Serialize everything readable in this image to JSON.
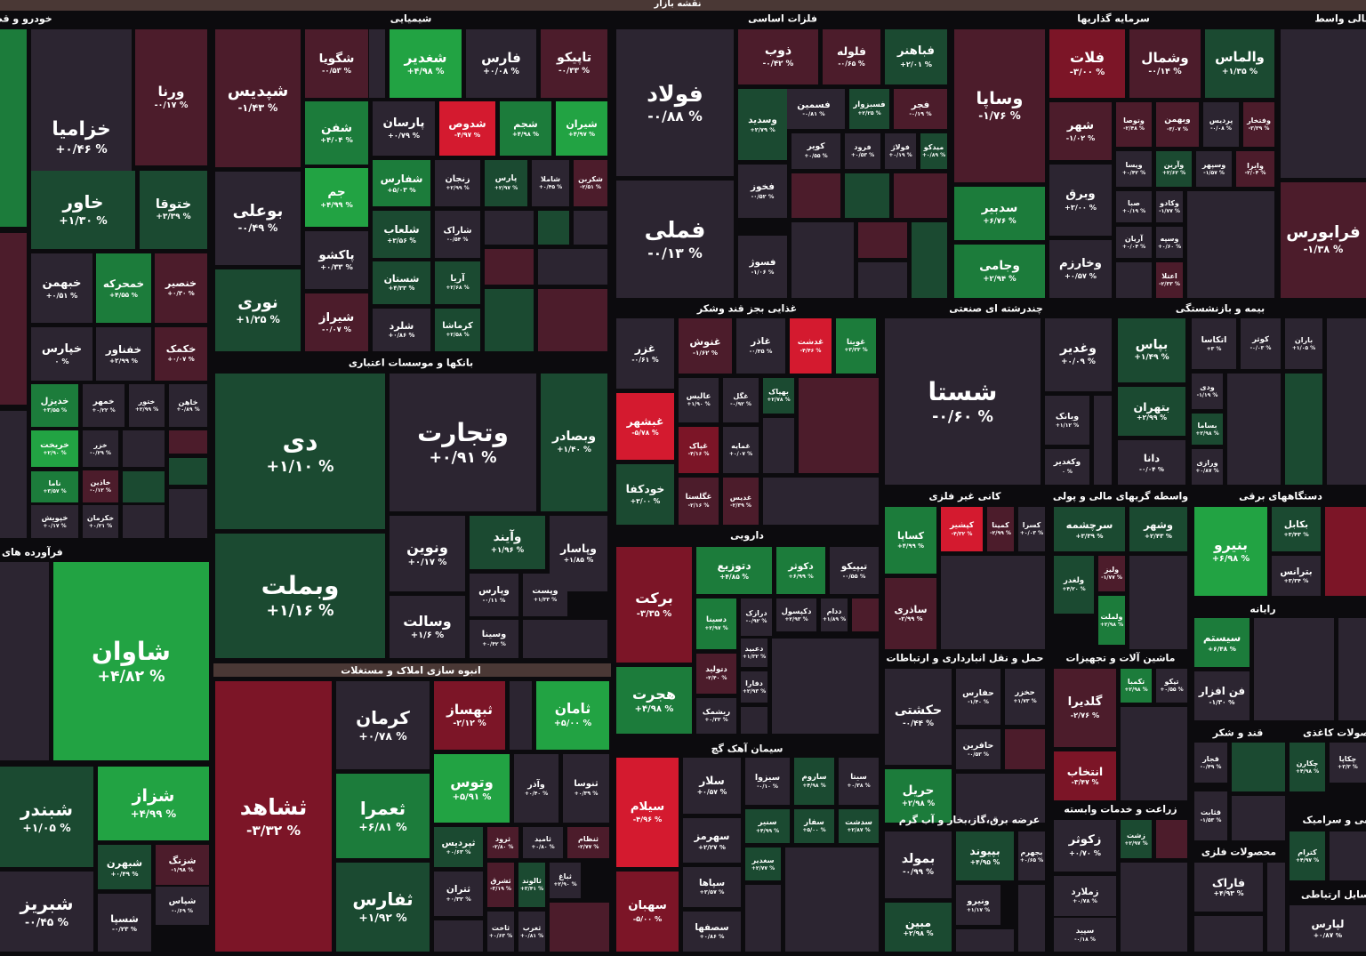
{
  "header": {
    "title": "نقشه بازار"
  },
  "sectors": [
    {
      "name": "خودرو و قطعات",
      "tiles": [
        {
          "symbol": "خزامیا",
          "change": "+۰/۴۶ %"
        },
        {
          "symbol": "ورنا",
          "change": "-۰/۱۷ %"
        },
        {
          "symbol": "خاور",
          "change": "+۱/۳۰ %"
        },
        {
          "symbol": "ختوقا",
          "change": "+۳/۳۹ %"
        },
        {
          "symbol": "خبهمن",
          "change": "+۰/۵۱ %"
        },
        {
          "symbol": "خمحرکه",
          "change": "+۴/۵۵ %"
        },
        {
          "symbol": "خنصیر",
          "change": "+۰/۳۰ %"
        },
        {
          "symbol": "خپارس",
          "change": "۰ %"
        },
        {
          "symbol": "خفناور",
          "change": "+۲/۹۹ %"
        },
        {
          "symbol": "خکمک",
          "change": "+۰/۰۷ %"
        },
        {
          "symbol": "خدیزل",
          "change": "+۳/۵۵ %"
        },
        {
          "symbol": "خمهر",
          "change": "+۰/۲۲ %"
        },
        {
          "symbol": "ختور",
          "change": "+۲/۹۹ %"
        },
        {
          "symbol": "خاهن",
          "change": "+۰/۸۹ %"
        },
        {
          "symbol": "خریخت",
          "change": "+۲/۹۰ %"
        },
        {
          "symbol": "خزر",
          "change": "-۰/۲۹ %"
        },
        {
          "symbol": "خاذین",
          "change": "-۰/۱۲ %"
        },
        {
          "symbol": "ناما",
          "change": "+۳/۵۷ %"
        },
        {
          "symbol": "خپویش",
          "change": "+۰/۱۷ %"
        },
        {
          "symbol": "خکرمان",
          "change": "+۰/۲۱ %"
        }
      ]
    },
    {
      "name": "فرآورده های غذایی",
      "tiles": [
        {
          "symbol": "شاوان",
          "change": "+۴/۸۲ %"
        },
        {
          "symbol": "شبندر",
          "change": "+۱/۰۵ %"
        },
        {
          "symbol": "شزاز",
          "change": "+۴/۹۹ %"
        },
        {
          "symbol": "شبهرن",
          "change": "+۰/۴۹ %"
        },
        {
          "symbol": "شزنگ",
          "change": "-۱/۹۸ %"
        },
        {
          "symbol": "شپاس",
          "change": "-۰/۶۹ %"
        },
        {
          "symbol": "شبریز",
          "change": "-۰/۴۵ %"
        },
        {
          "symbol": "شسپا",
          "change": "-۰/۲۳ %"
        }
      ]
    },
    {
      "name": "شیمیایی",
      "tiles": [
        {
          "symbol": "شپدیس",
          "change": "-۱/۴۳ %"
        },
        {
          "symbol": "بوعلی",
          "change": "-۰/۴۹ %"
        },
        {
          "symbol": "نوری",
          "change": "+۱/۲۵ %"
        },
        {
          "symbol": "شگویا",
          "change": "-۰/۵۳ %"
        },
        {
          "symbol": "شغدیر",
          "change": "+۴/۹۸ %"
        },
        {
          "symbol": "فارس",
          "change": "+۰/۰۸ %"
        },
        {
          "symbol": "تاپیکو",
          "change": "-۰/۳۳ %"
        },
        {
          "symbol": "شفن",
          "change": "+۴/۰۴ %"
        },
        {
          "symbol": "پارسان",
          "change": "+۰/۷۹ %"
        },
        {
          "symbol": "شدوص",
          "change": "-۴/۹۷ %"
        },
        {
          "symbol": "شجم",
          "change": "+۴/۹۸ %"
        },
        {
          "symbol": "شیران",
          "change": "+۴/۹۷ %"
        },
        {
          "symbol": "جم",
          "change": "+۴/۹۹ %"
        },
        {
          "symbol": "شفارس",
          "change": "+۵/۰۳ %"
        },
        {
          "symbol": "زنجان",
          "change": "+۲/۹۹ %"
        },
        {
          "symbol": "پارس",
          "change": "+۲/۹۷ %"
        },
        {
          "symbol": "شاملا",
          "change": "+۰/۴۵ %"
        },
        {
          "symbol": "شکربن",
          "change": "-۲/۵۱ %"
        },
        {
          "symbol": "پاکشو",
          "change": "+۰/۳۳ %"
        },
        {
          "symbol": "شلعاب",
          "change": "+۳/۵۶ %"
        },
        {
          "symbol": "شاراک",
          "change": "-۰/۵۴ %"
        },
        {
          "symbol": "شستان",
          "change": "+۴/۳۳ %"
        },
        {
          "symbol": "آریا",
          "change": "+۲/۶۸ %"
        },
        {
          "symbol": "شیراز",
          "change": "-۰/۰۷ %"
        },
        {
          "symbol": "شلرد",
          "change": "+۰/۸۶ %"
        },
        {
          "symbol": "کرماشا",
          "change": "+۲/۵۸ %"
        }
      ]
    },
    {
      "name": "بانکها و موسسات اعتباری",
      "tiles": [
        {
          "symbol": "دی",
          "change": "+۱/۱۰ %"
        },
        {
          "symbol": "وتجارت",
          "change": "+۰/۹۱ %"
        },
        {
          "symbol": "وبصادر",
          "change": "+۱/۴۰ %"
        },
        {
          "symbol": "وبملت",
          "change": "+۱/۱۶ %"
        },
        {
          "symbol": "ونوین",
          "change": "+۰/۱۷ %"
        },
        {
          "symbol": "وآیند",
          "change": "+۱/۹۶ %"
        },
        {
          "symbol": "وپاسار",
          "change": "+۱/۸۵ %"
        },
        {
          "symbol": "وسالت",
          "change": "+۱/۶ %"
        },
        {
          "symbol": "وپارس",
          "change": "-۰/۱۱ %"
        },
        {
          "symbol": "وپست",
          "change": "+۱/۳۳ %"
        },
        {
          "symbol": "وسینا",
          "change": "+۰/۴۲ %"
        }
      ]
    },
    {
      "name": "انبوه سازی املاک و مستغلات",
      "tiles": [
        {
          "symbol": "ثشاهد",
          "change": "-۳/۳۲ %"
        },
        {
          "symbol": "کرمان",
          "change": "+۰/۷۸ %"
        },
        {
          "symbol": "ثبهساز",
          "change": "-۲/۱۲ %"
        },
        {
          "symbol": "ثامان",
          "change": "+۵/۰۰ %"
        },
        {
          "symbol": "ثعمرا",
          "change": "+۶/۸۱ %"
        },
        {
          "symbol": "ثفارس",
          "change": "+۱/۹۲ %"
        },
        {
          "symbol": "وتوس",
          "change": "+۵/۹۱ %"
        },
        {
          "symbol": "وآذر",
          "change": "+۰/۴۰ %"
        },
        {
          "symbol": "ثنوسا",
          "change": "+۰/۳۹ %"
        },
        {
          "symbol": "ثپردیس",
          "change": "+۰/۶۳ %"
        },
        {
          "symbol": "ثرود",
          "change": "-۲/۸۰ %"
        },
        {
          "symbol": "ثامید",
          "change": "+۰/۸۰ %"
        },
        {
          "symbol": "ثنظام",
          "change": "-۲/۷۷ %"
        },
        {
          "symbol": "ثتران",
          "change": "+۰/۳۲ %"
        },
        {
          "symbol": "ثشرق",
          "change": "-۳/۱۹ %"
        },
        {
          "symbol": "ثالوند",
          "change": "+۳/۴۱ %"
        },
        {
          "symbol": "ثباغ",
          "change": "+۲/۹۰ %"
        },
        {
          "symbol": "ثاخت",
          "change": "+۰/۶۳ %"
        },
        {
          "symbol": "ثغرب",
          "change": "+۰/۸۱ %"
        }
      ]
    },
    {
      "name": "فلزات اساسی",
      "tiles": [
        {
          "symbol": "فولاد",
          "change": "-۰/۸۸ %"
        },
        {
          "symbol": "فملی",
          "change": "-۰/۱۳ %"
        },
        {
          "symbol": "ذوب",
          "change": "-۰/۴۲ %"
        },
        {
          "symbol": "فلوله",
          "change": "-۰/۶۵ %"
        },
        {
          "symbol": "فباهنر",
          "change": "+۲/۰۱ %"
        },
        {
          "symbol": "فسمین",
          "change": "-۰/۸۱ %"
        },
        {
          "symbol": "فسبزوار",
          "change": "+۲/۲۵ %"
        },
        {
          "symbol": "فجر",
          "change": "-۰/۱۹ %"
        },
        {
          "symbol": "وسدید",
          "change": "+۲/۷۹ %"
        },
        {
          "symbol": "کویر",
          "change": "+۰/۵۵ %"
        },
        {
          "symbol": "فرود",
          "change": "+۰/۵۳ %"
        },
        {
          "symbol": "فولاژ",
          "change": "+۰/۱۹ %"
        },
        {
          "symbol": "میدکو",
          "change": "+۰/۸۹ %"
        },
        {
          "symbol": "فخوز",
          "change": "-۰/۵۲ %"
        },
        {
          "symbol": "فسوژ",
          "change": "-۱/۰۶ %"
        }
      ]
    },
    {
      "name": "سرمایه گذاریها",
      "tiles": [
        {
          "symbol": "وساپا",
          "change": "-۱/۷۶ %"
        },
        {
          "symbol": "فلات",
          "change": "-۳/۰۰ %"
        },
        {
          "symbol": "وشمال",
          "change": "-۰/۱۴ %"
        },
        {
          "symbol": "والماس",
          "change": "+۱/۳۵ %"
        },
        {
          "symbol": "شهر",
          "change": "-۱/۰۲ %"
        },
        {
          "symbol": "وتوصا",
          "change": "-۲/۴۸ %"
        },
        {
          "symbol": "وبهمن",
          "change": "-۳/۰۷ %"
        },
        {
          "symbol": "پردیس",
          "change": "-۰/۰۸ %"
        },
        {
          "symbol": "وفتخار",
          "change": "-۳/۳۹ %"
        },
        {
          "symbol": "سدبیر",
          "change": "+۶/۷۶ %"
        },
        {
          "symbol": "وبرق",
          "change": "+۳/۰۰ %"
        },
        {
          "symbol": "ویسا",
          "change": "+۰/۴۲ %"
        },
        {
          "symbol": "وآرین",
          "change": "+۲/۶۲ %"
        },
        {
          "symbol": "وسپهر",
          "change": "-۱/۵۷ %"
        },
        {
          "symbol": "وایرا",
          "change": "-۲/۰۴ %"
        },
        {
          "symbol": "وجامی",
          "change": "+۲/۹۴ %"
        },
        {
          "symbol": "وخارزم",
          "change": "+۰/۵۷ %"
        },
        {
          "symbol": "صبا",
          "change": "+۰/۱۹ %"
        },
        {
          "symbol": "وکادو",
          "change": "-۱/۷۷ %"
        },
        {
          "symbol": "آریان",
          "change": "+۰/۰۴ %"
        },
        {
          "symbol": "وسپه",
          "change": "+۰/۶۰ %"
        },
        {
          "symbol": "اعتلا",
          "change": "-۲/۳۳ %"
        }
      ]
    },
    {
      "name": "مالی واسط",
      "tiles": [
        {
          "symbol": "فرابورس",
          "change": "-۱/۳۸ %"
        }
      ]
    },
    {
      "name": "غذایی بجز قند وشکر",
      "tiles": [
        {
          "symbol": "غزر",
          "change": "-۰/۶۱ %"
        },
        {
          "symbol": "غنوش",
          "change": "-۱/۶۲ %"
        },
        {
          "symbol": "غاذر",
          "change": "-۰/۳۵ %"
        },
        {
          "symbol": "غدشت",
          "change": "-۴/۴۶ %"
        },
        {
          "symbol": "غویتا",
          "change": "+۳/۳۳ %"
        },
        {
          "symbol": "غبشهر",
          "change": "-۵/۷۸ %"
        },
        {
          "symbol": "خودکفا",
          "change": "+۳/۰۰ %"
        },
        {
          "symbol": "عالیس",
          "change": "+۱/۹۰ %"
        },
        {
          "symbol": "غگل",
          "change": "-۰/۹۲ %"
        },
        {
          "symbol": "بهپاک",
          "change": "+۲/۷۸ %"
        },
        {
          "symbol": "غپاک",
          "change": "-۴/۱۶ %"
        },
        {
          "symbol": "غمایه",
          "change": "+۰/۰۷ %"
        },
        {
          "symbol": "غگلستا",
          "change": "-۲/۱۶ %"
        },
        {
          "symbol": "غدیس",
          "change": "-۲/۳۹ %"
        }
      ]
    },
    {
      "name": "دارویی",
      "tiles": [
        {
          "symbol": "برکت",
          "change": "-۳/۳۵ %"
        },
        {
          "symbol": "هجرت",
          "change": "+۴/۹۸ %"
        },
        {
          "symbol": "دتوزیع",
          "change": "+۴/۸۵ %"
        },
        {
          "symbol": "دکوثر",
          "change": "+۶/۹۹ %"
        },
        {
          "symbol": "تیپیکو",
          "change": "-۰/۵۵ %"
        },
        {
          "symbol": "دسینا",
          "change": "+۲/۹۷ %"
        },
        {
          "symbol": "درازک",
          "change": "-۰/۹۲ %"
        },
        {
          "symbol": "دکپسول",
          "change": "+۲/۹۳ %"
        },
        {
          "symbol": "ددام",
          "change": "+۱/۸۹ %"
        },
        {
          "symbol": "دعبید",
          "change": "+۱/۳۲ %"
        },
        {
          "symbol": "دتولید",
          "change": "-۲/۴۰ %"
        },
        {
          "symbol": "دفارا",
          "change": "+۲/۹۳ %"
        },
        {
          "symbol": "ریشمک",
          "change": "+۰/۳۳ %"
        }
      ]
    },
    {
      "name": "سیمان آهک گچ",
      "tiles": [
        {
          "symbol": "سیلام",
          "change": "-۴/۹۶ %"
        },
        {
          "symbol": "سهبان",
          "change": "-۵/۰۰ %"
        },
        {
          "symbol": "سلار",
          "change": "+۰/۵۷ %"
        },
        {
          "symbol": "سیزوا",
          "change": "-۰/۱۰ %"
        },
        {
          "symbol": "ساروم",
          "change": "+۴/۹۸ %"
        },
        {
          "symbol": "سیتا",
          "change": "+۰/۳۸ %"
        },
        {
          "symbol": "سنیر",
          "change": "+۴/۹۹ %"
        },
        {
          "symbol": "سفار",
          "change": "+۵/۰۰ %"
        },
        {
          "symbol": "سدشت",
          "change": "+۲/۸۷ %"
        },
        {
          "symbol": "سهرمز",
          "change": "+۲/۲۷ %"
        },
        {
          "symbol": "سغدیر",
          "change": "+۲/۷۷ %"
        },
        {
          "symbol": "سپاها",
          "change": "+۲/۵۷ %"
        },
        {
          "symbol": "سصفها",
          "change": "+۰/۸۶ %"
        }
      ]
    },
    {
      "name": "چندرشته ای صنعتی",
      "tiles": [
        {
          "symbol": "شستا",
          "change": "-۰/۶۰ %"
        },
        {
          "symbol": "وغدیر",
          "change": "+۰/۰۹ %"
        },
        {
          "symbol": "وبانک",
          "change": "+۱/۱۲ %"
        },
        {
          "symbol": "وکغدیر",
          "change": "۰ %"
        }
      ]
    },
    {
      "name": "بیمه و بازنشستگی",
      "tiles": [
        {
          "symbol": "بپاس",
          "change": "+۱/۴۹ %"
        },
        {
          "symbol": "اتکاسا",
          "change": "+۳ %"
        },
        {
          "symbol": "کوثر",
          "change": "-۰/۰۳ %"
        },
        {
          "symbol": "باران",
          "change": "+۱/۰۵ %"
        },
        {
          "symbol": "بتهران",
          "change": "+۲/۹۹ %"
        },
        {
          "symbol": "ودی",
          "change": "-۱/۱۹ %"
        },
        {
          "symbol": "بساما",
          "change": "+۲/۹۸ %"
        },
        {
          "symbol": "دانا",
          "change": "-۰/۰۴ %"
        },
        {
          "symbol": "ورازی",
          "change": "+۰/۸۷ %"
        }
      ]
    },
    {
      "name": "کانی غیر فلزی",
      "tiles": [
        {
          "symbol": "کساپا",
          "change": "+۴/۹۹ %"
        },
        {
          "symbol": "کپشیر",
          "change": "-۴/۳۲ %"
        },
        {
          "symbol": "کمینا",
          "change": "-۲/۹۹ %"
        },
        {
          "symbol": "کسرا",
          "change": "+۰/۰۳ %"
        },
        {
          "symbol": "ساذری",
          "change": "-۲/۹۹ %"
        }
      ]
    },
    {
      "name": "واسطه گریهای مالی و پولی",
      "tiles": [
        {
          "symbol": "سرچشمه",
          "change": "+۳/۳۹ %"
        },
        {
          "symbol": "وشهر",
          "change": "+۲/۴۳ %"
        },
        {
          "symbol": "ولغدر",
          "change": "+۴/۲۰ %"
        },
        {
          "symbol": "ولیز",
          "change": "-۱/۷۷ %"
        },
        {
          "symbol": "ولملت",
          "change": "+۲/۹۸ %"
        }
      ]
    },
    {
      "name": "دستگاههای برقی",
      "tiles": [
        {
          "symbol": "بنیرو",
          "change": "+۶/۹۸ %"
        },
        {
          "symbol": "بکابل",
          "change": "+۳/۴۳ %"
        },
        {
          "symbol": "بترانس",
          "change": "+۳/۳۴ %"
        }
      ]
    },
    {
      "name": "رایانه",
      "tiles": [
        {
          "symbol": "سیستم",
          "change": "+۶/۴۸ %"
        },
        {
          "symbol": "فن افزار",
          "change": "-۱/۳۰ %"
        }
      ]
    },
    {
      "name": "حمل و نقل انبارداری و ارتباطات",
      "tiles": [
        {
          "symbol": "حکشتی",
          "change": "-۰/۴۴ %"
        },
        {
          "symbol": "حفارس",
          "change": "-۱/۴۰ %"
        },
        {
          "symbol": "حخزر",
          "change": "+۱/۷۳ %"
        },
        {
          "symbol": "حافرین",
          "change": "-۰/۵۳ %"
        },
        {
          "symbol": "حریل",
          "change": "+۲/۹۸ %"
        }
      ]
    },
    {
      "name": "ماشین آلات و تجهیزات",
      "tiles": [
        {
          "symbol": "گلدیرا",
          "change": "-۲/۷۶ %"
        },
        {
          "symbol": "تکمبا",
          "change": "+۲/۹۸ %"
        },
        {
          "symbol": "تیکو",
          "change": "+۰/۵۵ %"
        },
        {
          "symbol": "انتخاب",
          "change": "-۳/۴۷ %"
        }
      ]
    },
    {
      "name": "قند و شکر",
      "tiles": [
        {
          "symbol": "قجار",
          "change": "-۰/۴۹ %"
        },
        {
          "symbol": "قثابت",
          "change": "-۱/۵۳ %"
        }
      ]
    },
    {
      "name": "محصولات کاغذی",
      "tiles": [
        {
          "symbol": "چکارن",
          "change": "+۴/۹۸ %"
        },
        {
          "symbol": "چکاپا",
          "change": "+۳/۳ %"
        }
      ]
    },
    {
      "name": "عرضه برق،گاز،بخار و آب گرم",
      "tiles": [
        {
          "symbol": "بمولد",
          "change": "-۰/۹۹ %"
        },
        {
          "symbol": "بپیوند",
          "change": "+۴/۹۵ %"
        },
        {
          "symbol": "بجهرم",
          "change": "+۰/۶۵ %"
        },
        {
          "symbol": "ونیرو",
          "change": "+۱/۱۷ %"
        },
        {
          "symbol": "مبین",
          "change": "+۲/۹۸ %"
        }
      ]
    },
    {
      "name": "زراعت و خدمات وابسته",
      "tiles": [
        {
          "symbol": "زکوثر",
          "change": "+۰/۷۰ %"
        },
        {
          "symbol": "زشت",
          "change": "+۲/۹۷ %"
        },
        {
          "symbol": "زملارد",
          "change": "+۰/۷۸ %"
        },
        {
          "symbol": "سپید",
          "change": "-۰/۱۸ %"
        }
      ]
    },
    {
      "name": "کاشی و سرامیک",
      "tiles": [
        {
          "symbol": "کترام",
          "change": "+۴/۹۷ %"
        }
      ]
    },
    {
      "name": "محصولات فلزی",
      "tiles": [
        {
          "symbol": "فاراک",
          "change": "+۴/۹۳ %"
        }
      ]
    },
    {
      "name": "وسایل ارتباطی",
      "tiles": [
        {
          "symbol": "لپارس",
          "change": "+۰/۸۷ %"
        }
      ]
    }
  ]
}
